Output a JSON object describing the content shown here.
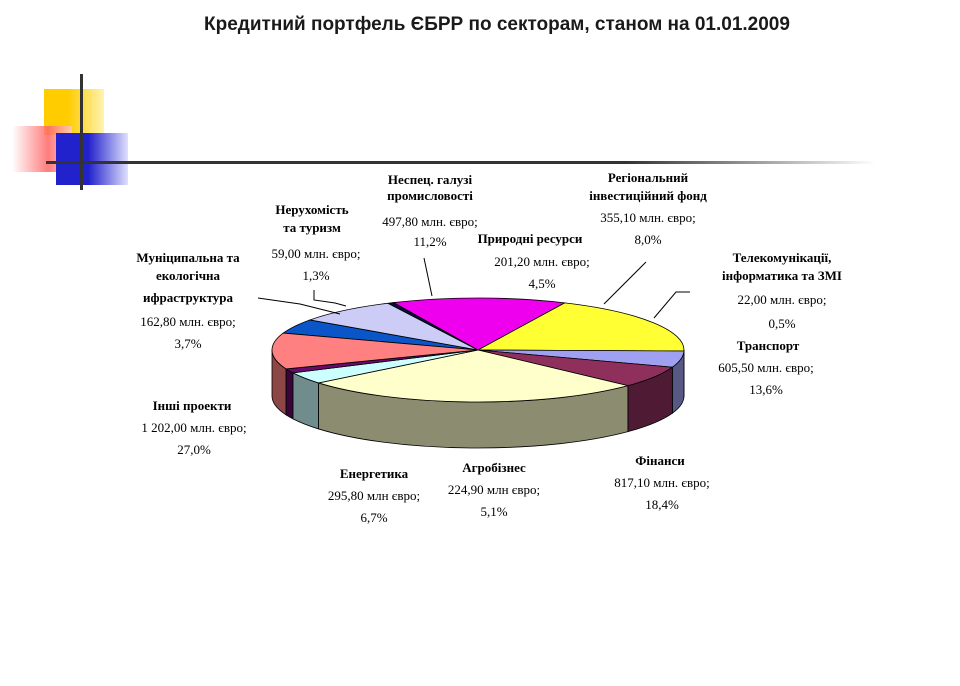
{
  "title": "Кредитний портфель ЄБРР по секторам, станом на 01.01.2009",
  "colors": {
    "deco_yellow": "#ffcc00",
    "deco_red": "#ff3b3b",
    "deco_blue": "#2222cc",
    "deco_line": "#333333"
  },
  "chart_data": {
    "type": "pie",
    "title": "Кредитний портфель ЄБРР по секторам, станом на 01.01.2009",
    "unit": "млн. євро",
    "series": [
      {
        "name": "Природні ресурси",
        "value": 201.2,
        "value_text": "201,20 млн. євро;",
        "percent_text": "4,5%",
        "color": "#0a56c9"
      },
      {
        "name": "Регіональний інвестиційний фонд",
        "value": 355.1,
        "value_text": "355,10 млн. євро;",
        "percent_text": "8,0%",
        "color": "#ccccf7"
      },
      {
        "name": "Телекомунікації, інформатика та ЗМІ",
        "value": 22.0,
        "value_text": "22,00 млн. євро;",
        "percent_text": "0,5%",
        "color": "#0a0a3c"
      },
      {
        "name": "Транспорт",
        "value": 605.5,
        "value_text": "605,50 млн. євро;",
        "percent_text": "13,6%",
        "color": "#ee00ee"
      },
      {
        "name": "Фінанси",
        "value": 817.1,
        "value_text": "817,10 млн. євро;",
        "percent_text": "18,4%",
        "color": "#ffff33"
      },
      {
        "name": "Агробізнес",
        "value": 224.9,
        "value_text": "224,90 млн євро;",
        "percent_text": "5,1%",
        "color": "#a0a0f2"
      },
      {
        "name": "Енергетика",
        "value": 295.8,
        "value_text": "295,80 млн євро;",
        "percent_text": "6,7%",
        "color": "#8f2f5c"
      },
      {
        "name": "Інші проекти",
        "value": 1202.0,
        "value_text": "1 202,00 млн. євро;",
        "percent_text": "27,0%",
        "color": "#ffffcc"
      },
      {
        "name": "Муніципальна та екологічна ифраструктура",
        "value": 162.8,
        "value_text": "162,80 млн. євро;",
        "percent_text": "3,7%",
        "color": "#ccffff"
      },
      {
        "name": "Нерухомість та туризм",
        "value": 59.0,
        "value_text": "59,00 млн. євро;",
        "percent_text": "1,3%",
        "color": "#6a0a6a"
      },
      {
        "name": "Неспец. галузі промисловості",
        "value": 497.8,
        "value_text": "497,80 млн. євро;",
        "percent_text": "11,2%",
        "color": "#ff8080"
      }
    ],
    "labels": {
      "pryrodni": [
        "Природні ресурси"
      ],
      "regional": [
        "Регіональний",
        "інвестиційний фонд"
      ],
      "telecom": [
        "Телекомунікації,",
        "інформатика та ЗМІ"
      ],
      "transport": [
        "Транспорт"
      ],
      "finance": [
        "Фінанси"
      ],
      "agro": [
        "Агробізнес"
      ],
      "energy": [
        "Енергетика"
      ],
      "other": [
        "Інші проекти"
      ],
      "municipal": [
        "Муніципальна та",
        "екологічна",
        "ифраструктура"
      ],
      "realty": [
        "Нерухомість",
        "та туризм"
      ],
      "industry": [
        "Неспец. галузі",
        "промисловості"
      ]
    }
  }
}
